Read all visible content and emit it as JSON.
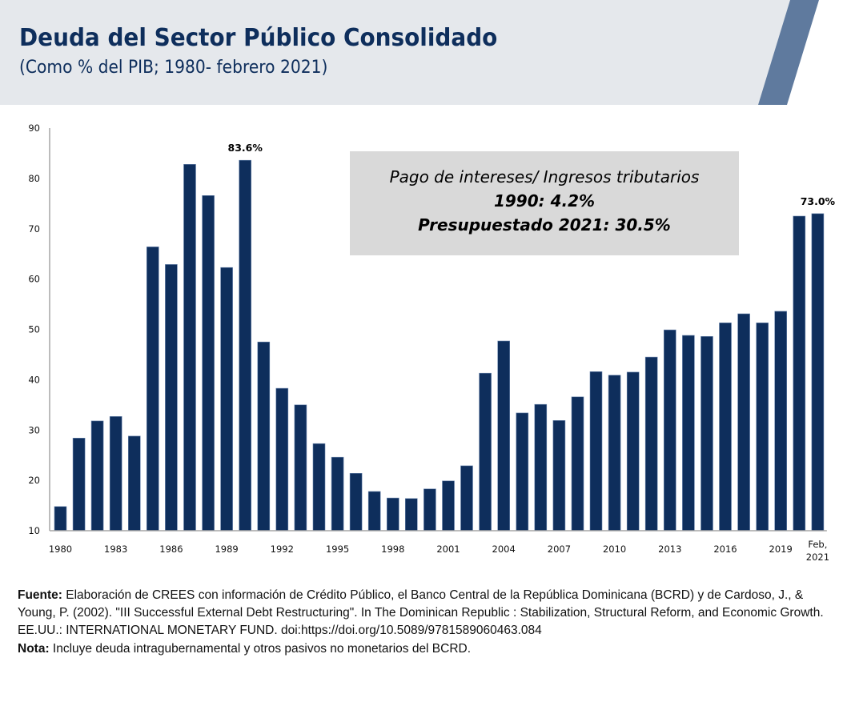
{
  "header": {
    "title": "Deuda del Sector Público Consolidado",
    "subtitle": "(Como % del PIB; 1980- febrero 2021)",
    "background_color": "#e5e8ec",
    "accent_color": "#5f7a9e",
    "title_color": "#0e2e5c"
  },
  "note_box": {
    "line1": "Pago de intereses/ Ingresos tributarios",
    "line2": "1990: 4.2%",
    "line3": "Presupuestado 2021: 30.5%"
  },
  "footer": {
    "source_label": "Fuente:",
    "source_text": " Elaboración de CREES con información de Crédito Público, el Banco Central de la República Dominicana (BCRD) y de Cardoso, J., & Young, P. (2002). \"III Successful External Debt Restructuring\". In The Dominican Republic : Stabilization, Structural Reform, and Economic Growth. EE.UU.: INTERNATIONAL MONETARY FUND. doi:https://doi.org/10.5089/9781589060463.084",
    "note_label": "Nota:",
    "note_text": " Incluye deuda intragubernamental y otros pasivos no monetarios del BCRD."
  },
  "chart_data": {
    "type": "bar",
    "title": "Deuda del Sector Público Consolidado",
    "subtitle": "(Como % del PIB; 1980- febrero 2021)",
    "xlabel": "",
    "ylabel": "",
    "ylim": [
      10,
      90
    ],
    "yticks": [
      10,
      20,
      30,
      40,
      50,
      60,
      70,
      80,
      90
    ],
    "grid": false,
    "legend": "none",
    "bar_color": "#0e2e5c",
    "categories": [
      "1980",
      "1981",
      "1982",
      "1983",
      "1984",
      "1985",
      "1986",
      "1987",
      "1988",
      "1989",
      "1990",
      "1991",
      "1992",
      "1993",
      "1994",
      "1995",
      "1996",
      "1997",
      "1998",
      "1999",
      "2000",
      "2001",
      "2002",
      "2003",
      "2004",
      "2005",
      "2006",
      "2007",
      "2008",
      "2009",
      "2010",
      "2011",
      "2012",
      "2013",
      "2014",
      "2015",
      "2016",
      "2017",
      "2018",
      "2019",
      "2020",
      "Feb, 2021"
    ],
    "xtick_labels": [
      {
        "index": 0,
        "text": "1980"
      },
      {
        "index": 3,
        "text": "1983"
      },
      {
        "index": 6,
        "text": "1986"
      },
      {
        "index": 9,
        "text": "1989"
      },
      {
        "index": 12,
        "text": "1992"
      },
      {
        "index": 15,
        "text": "1995"
      },
      {
        "index": 18,
        "text": "1998"
      },
      {
        "index": 21,
        "text": "2001"
      },
      {
        "index": 24,
        "text": "2004"
      },
      {
        "index": 27,
        "text": "2007"
      },
      {
        "index": 30,
        "text": "2010"
      },
      {
        "index": 33,
        "text": "2013"
      },
      {
        "index": 36,
        "text": "2016"
      },
      {
        "index": 39,
        "text": "2019"
      },
      {
        "index": 41,
        "text": "Feb,",
        "text2": "2021"
      }
    ],
    "values": [
      14.8,
      28.4,
      31.8,
      32.7,
      28.8,
      66.4,
      62.9,
      82.8,
      76.6,
      62.3,
      83.6,
      47.5,
      38.3,
      35.0,
      27.3,
      24.6,
      21.4,
      17.8,
      16.5,
      16.4,
      18.3,
      19.9,
      22.9,
      41.3,
      47.7,
      33.4,
      35.1,
      31.9,
      36.6,
      41.6,
      40.9,
      41.5,
      44.5,
      49.9,
      48.8,
      48.6,
      51.3,
      53.1,
      51.3,
      53.6,
      72.5,
      73.0
    ],
    "annotations": [
      {
        "index": 10,
        "text": "83.6%"
      },
      {
        "index": 41,
        "text": "73.0%"
      }
    ]
  }
}
